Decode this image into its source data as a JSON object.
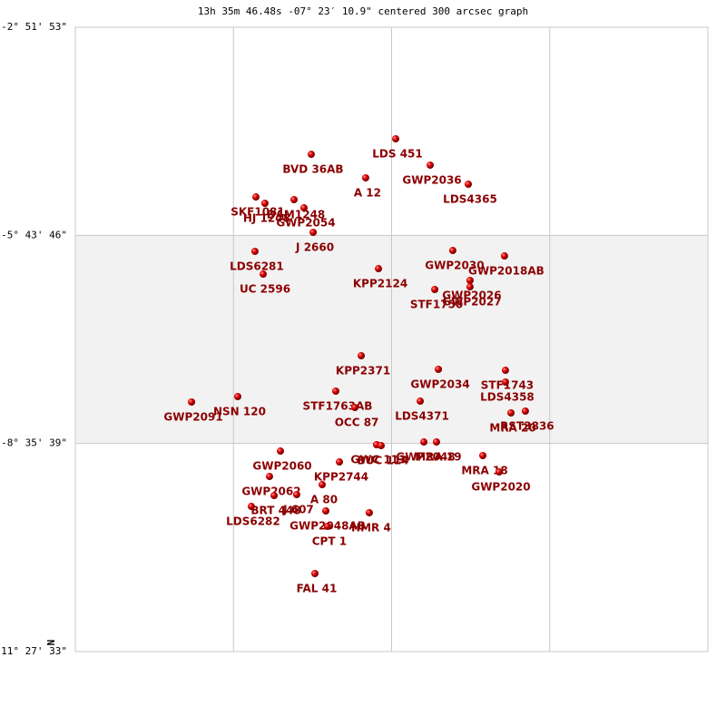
{
  "chart_data": {
    "type": "scatter",
    "title": "13h 35m 46.48s -07° 23′ 10.9\" centered 300 arcsec graph",
    "north_label": "N",
    "color": "#cc0000",
    "label_color": "#8b0000",
    "grid": true,
    "xlim": [
      0,
      4
    ],
    "xticks": [
      1,
      2,
      3
    ],
    "ylim": [
      -11.4592,
      -2.8647
    ],
    "yticks": [
      {
        "value": -2.8647,
        "label": "-2° 51' 53\""
      },
      {
        "value": -5.7294,
        "label": "-5° 43' 46\""
      },
      {
        "value": -8.5942,
        "label": "-8° 35' 39\""
      },
      {
        "value": -11.4592,
        "label": "-11° 27' 33\""
      }
    ],
    "points": {
      "labels": [
        "LDS 451",
        "BVD 36AB",
        "GWP2036",
        "A   12",
        "LDS4365",
        "SKF1081",
        "HJ 1248",
        "DAM1248",
        "GWP2054",
        "J  2660",
        "LDS6281",
        "UC 2596",
        "GWP2030",
        "GWP2018AB",
        "KPP2124",
        "GWP2026",
        "GWP2027",
        "STF1750",
        "KPP2371",
        "GWP2034",
        "STF1743",
        "LDS4358",
        "NSN 120",
        "GWP2091",
        "STF1763AB",
        "OCC  87",
        "LDS4371",
        "MRA  20",
        "RST3836",
        "GWP2060",
        "KPP2744",
        "GWC 113",
        "BUC 114",
        "GWP2048",
        "MRA  19",
        "MRA  18",
        "GWP2020",
        "GWP2062",
        "A   80",
        "J 607",
        "BRT 448",
        "LDS6282",
        "GWP2048AB",
        "CPT   1",
        "HMR   4",
        "FAL  41"
      ],
      "x": [
        2.026,
        1.492,
        2.244,
        1.836,
        2.485,
        1.142,
        1.199,
        1.383,
        1.446,
        1.504,
        1.136,
        1.188,
        2.387,
        2.714,
        1.917,
        2.496,
        2.496,
        2.273,
        1.808,
        2.296,
        2.72,
        2.72,
        1.027,
        0.735,
        1.647,
        1.768,
        2.181,
        2.755,
        2.846,
        1.297,
        1.67,
        1.905,
        1.934,
        2.204,
        2.284,
        2.577,
        2.68,
        1.228,
        1.561,
        1.4,
        1.257,
        1.113,
        1.584,
        1.595,
        1.859,
        1.515
      ],
      "y": [
        -4.401,
        -4.614,
        -4.763,
        -4.938,
        -5.026,
        -5.201,
        -5.288,
        -5.238,
        -5.351,
        -5.688,
        -5.95,
        -6.263,
        -5.938,
        -6.013,
        -6.188,
        -6.35,
        -6.438,
        -6.475,
        -7.387,
        -7.574,
        -7.587,
        -7.749,
        -7.949,
        -8.024,
        -7.874,
        -8.099,
        -8.012,
        -8.174,
        -8.149,
        -8.699,
        -8.849,
        -8.611,
        -8.624,
        -8.574,
        -8.574,
        -8.761,
        -8.986,
        -9.049,
        -9.161,
        -9.298,
        -9.311,
        -9.461,
        -9.523,
        -9.736,
        -9.548,
        -10.385
      ]
    }
  }
}
